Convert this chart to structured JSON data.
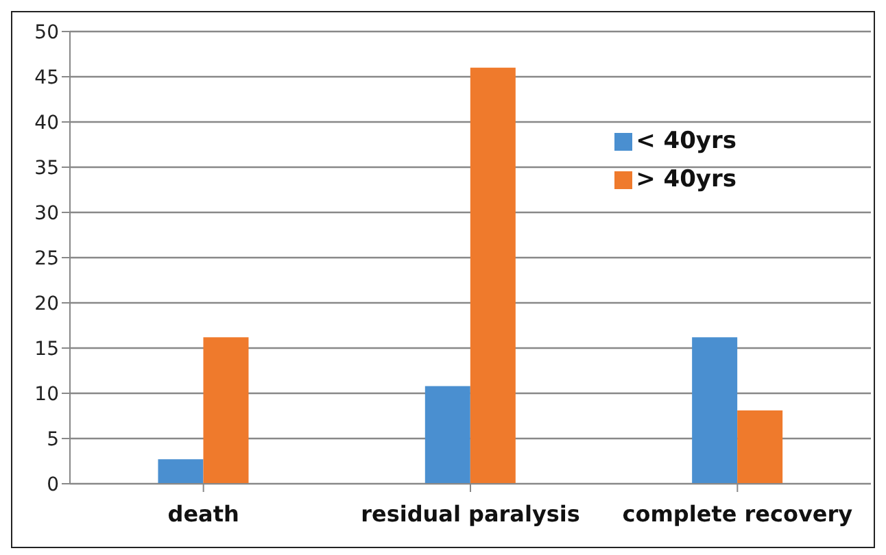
{
  "chart_data": {
    "type": "bar",
    "categories": [
      "death",
      "residual paralysis",
      "complete recovery"
    ],
    "series": [
      {
        "name": "< 40yrs",
        "color": "#4a8fd0",
        "values": [
          2.7,
          10.8,
          16.2
        ]
      },
      {
        "name": "> 40yrs",
        "color": "#ef7a2c",
        "values": [
          16.2,
          46,
          8.1
        ]
      }
    ],
    "ylim": [
      0,
      50
    ],
    "yticks": [
      0,
      5,
      10,
      15,
      20,
      25,
      30,
      35,
      40,
      45,
      50
    ],
    "grid": "y",
    "legend": "top right"
  }
}
